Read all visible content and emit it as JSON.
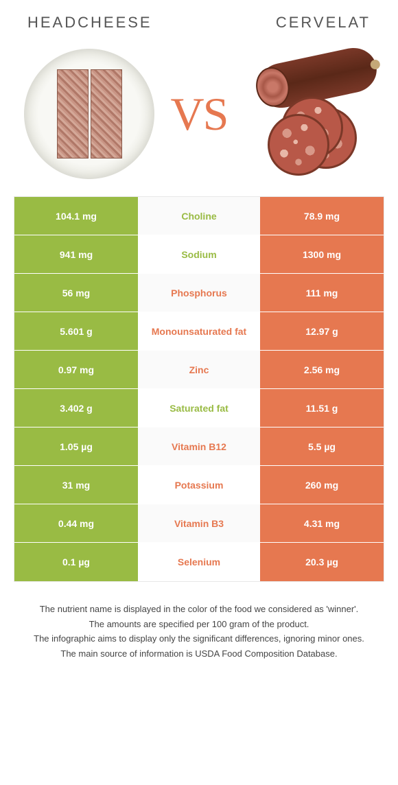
{
  "header": {
    "left_title": "HEADCHEESE",
    "right_title": "CERVELAT",
    "vs_label": "VS"
  },
  "colors": {
    "left": "#99bb44",
    "right": "#e67850",
    "mid_left_text": "#99bb44",
    "mid_right_text": "#e67850",
    "row_border": "#ffffff",
    "background": "#ffffff"
  },
  "table": {
    "rows": [
      {
        "left": "104.1 mg",
        "mid": "Choline",
        "right": "78.9 mg",
        "winner": "left"
      },
      {
        "left": "941 mg",
        "mid": "Sodium",
        "right": "1300 mg",
        "winner": "left"
      },
      {
        "left": "56 mg",
        "mid": "Phosphorus",
        "right": "111 mg",
        "winner": "right"
      },
      {
        "left": "5.601 g",
        "mid": "Monounsaturated fat",
        "right": "12.97 g",
        "winner": "right"
      },
      {
        "left": "0.97 mg",
        "mid": "Zinc",
        "right": "2.56 mg",
        "winner": "right"
      },
      {
        "left": "3.402 g",
        "mid": "Saturated fat",
        "right": "11.51 g",
        "winner": "left"
      },
      {
        "left": "1.05 µg",
        "mid": "Vitamin B12",
        "right": "5.5 µg",
        "winner": "right"
      },
      {
        "left": "31 mg",
        "mid": "Potassium",
        "right": "260 mg",
        "winner": "right"
      },
      {
        "left": "0.44 mg",
        "mid": "Vitamin B3",
        "right": "4.31 mg",
        "winner": "right"
      },
      {
        "left": "0.1 µg",
        "mid": "Selenium",
        "right": "20.3 µg",
        "winner": "right"
      }
    ]
  },
  "footer": {
    "line1": "The nutrient name is displayed in the color of the food we considered as 'winner'.",
    "line2": "The amounts are specified per 100 gram of the product.",
    "line3": "The infographic aims to display only the significant differences, ignoring minor ones.",
    "line4": "The main source of information is USDA Food Composition Database."
  }
}
